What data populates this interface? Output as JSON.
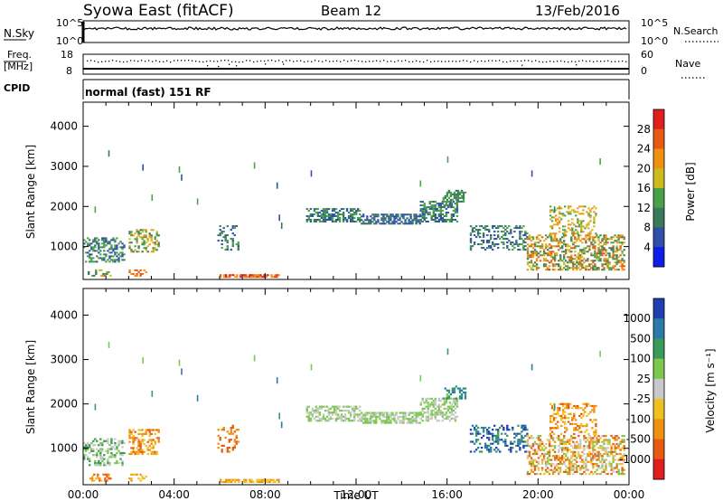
{
  "header": {
    "station": "Syowa East (fitACF)",
    "beam": "Beam 12",
    "date": "13/Feb/2016"
  },
  "noise_panel": {
    "left_label": "N.Sky",
    "right_label": "N.Search",
    "ticks_left": [
      "10^5",
      "10^0"
    ],
    "ticks_right": [
      "10^5",
      "10^0"
    ]
  },
  "freq_panel": {
    "left_label_line1": "Freq.",
    "left_label_line2": "[MHz]",
    "ticks_left": [
      "18",
      "8"
    ],
    "ticks_right": [
      "60",
      "0"
    ],
    "right_label": "Nave"
  },
  "cpid_panel": {
    "label": "CPID",
    "text": "normal (fast) 151 RF"
  },
  "chart_data": [
    {
      "type": "heatmap",
      "name": "power",
      "ylabel": "Slant Range [km]",
      "ylim": [
        180,
        4600
      ],
      "yticks": [
        "1000",
        "2000",
        "3000",
        "4000"
      ],
      "xlim_hours": [
        0,
        24
      ],
      "xticks": [
        "00:00",
        "04:00",
        "08:00",
        "12:00",
        "16:00",
        "20:00",
        "00:00"
      ],
      "colorbar_label": "Power [dB]",
      "colorbar_ticks": [
        "4",
        "8",
        "12",
        "16",
        "20",
        "24",
        "28"
      ],
      "colors": [
        "#0d1ee6",
        "#2f4fa8",
        "#3a7a5a",
        "#49a24a",
        "#cdbb1e",
        "#f09010",
        "#e85a10",
        "#e01e1e"
      ]
    },
    {
      "type": "heatmap",
      "name": "velocity",
      "ylabel": "Slant Range [km]",
      "ylim": [
        180,
        4600
      ],
      "yticks": [
        "1000",
        "2000",
        "3000",
        "4000"
      ],
      "xlim_hours": [
        0,
        24
      ],
      "xticks": [
        "00:00",
        "04:00",
        "08:00",
        "12:00",
        "16:00",
        "20:00",
        "00:00"
      ],
      "xlabel": "Time UT",
      "colorbar_label": "Velocity [m s⁻¹]",
      "colorbar_ticks": [
        "1000",
        "500",
        "100",
        "25",
        "-25",
        "-100",
        "-500",
        "-1000"
      ],
      "colors": [
        "#1f3fb0",
        "#2d7aa8",
        "#3a9a5a",
        "#7ec850",
        "#c8c8c8",
        "#f0c020",
        "#f09010",
        "#e85a10",
        "#e01e1e"
      ]
    }
  ]
}
